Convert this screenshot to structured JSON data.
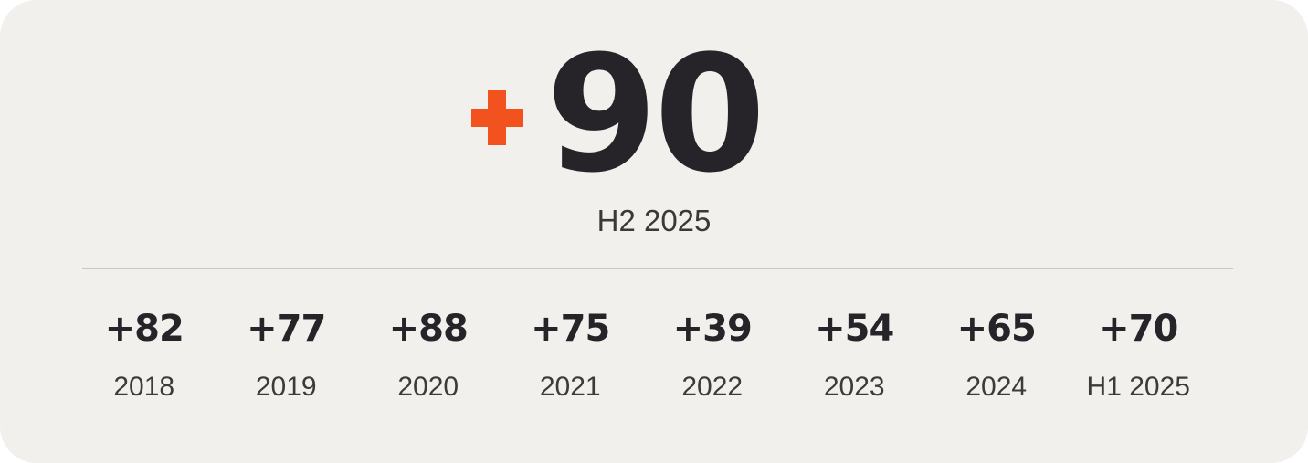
{
  "theme": {
    "card_bg": "#F1F0ED",
    "accent_orange": "#F2521D",
    "ink_dark": "#262428",
    "label_gray": "#3D3B3A",
    "divider_gray": "#C9C7C3"
  },
  "hero": {
    "prefix": "+",
    "number": "90",
    "period": "H2 2025"
  },
  "history": {
    "items": [
      {
        "value": "+82",
        "label": "2018"
      },
      {
        "value": "+77",
        "label": "2019"
      },
      {
        "value": "+88",
        "label": "2020"
      },
      {
        "value": "+75",
        "label": "2021"
      },
      {
        "value": "+39",
        "label": "2022"
      },
      {
        "value": "+54",
        "label": "2023"
      },
      {
        "value": "+65",
        "label": "2024"
      },
      {
        "value": "+70",
        "label": "H1 2025"
      }
    ]
  },
  "chart_data": {
    "type": "table",
    "title": "",
    "categories": [
      "2018",
      "2019",
      "2020",
      "2021",
      "2022",
      "2023",
      "2024",
      "H1 2025",
      "H2 2025"
    ],
    "values": [
      82,
      77,
      88,
      75,
      39,
      54,
      65,
      70,
      90
    ],
    "value_prefix": "+",
    "highlight": {
      "category": "H2 2025",
      "value": 90
    }
  }
}
